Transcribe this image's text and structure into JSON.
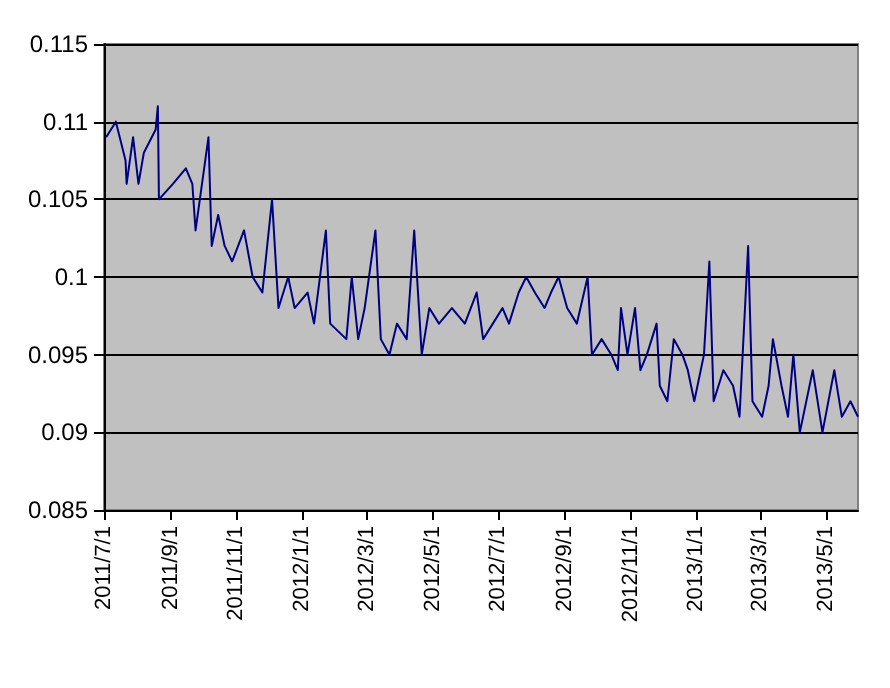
{
  "chart_data": {
    "type": "line",
    "x": [
      "2011-07-03",
      "2011-07-12",
      "2011-07-21",
      "2011-07-22",
      "2011-07-28",
      "2011-08-02",
      "2011-08-07",
      "2011-08-18",
      "2011-08-20",
      "2011-08-21",
      "2011-09-03",
      "2011-09-15",
      "2011-09-21",
      "2011-09-24",
      "2011-10-06",
      "2011-10-09",
      "2011-10-15",
      "2011-10-21",
      "2011-10-28",
      "2011-11-08",
      "2011-11-16",
      "2011-11-25",
      "2011-12-04",
      "2011-12-10",
      "2011-12-19",
      "2011-12-25",
      "2012-01-06",
      "2012-01-12",
      "2012-01-23",
      "2012-01-27",
      "2012-02-11",
      "2012-02-16",
      "2012-02-22",
      "2012-02-28",
      "2012-03-05",
      "2012-03-09",
      "2012-03-14",
      "2012-03-22",
      "2012-03-29",
      "2012-04-07",
      "2012-04-14",
      "2012-04-21",
      "2012-04-28",
      "2012-05-07",
      "2012-05-19",
      "2012-05-31",
      "2012-06-11",
      "2012-06-17",
      "2012-06-26",
      "2012-07-05",
      "2012-07-11",
      "2012-07-20",
      "2012-07-27",
      "2012-08-04",
      "2012-08-13",
      "2012-08-19",
      "2012-08-26",
      "2012-09-03",
      "2012-09-12",
      "2012-09-22",
      "2012-09-26",
      "2012-10-05",
      "2012-10-14",
      "2012-10-20",
      "2012-10-23",
      "2012-10-29",
      "2012-11-05",
      "2012-11-10",
      "2012-11-16",
      "2012-11-25",
      "2012-11-28",
      "2012-12-05",
      "2012-12-11",
      "2012-12-19",
      "2012-12-24",
      "2012-12-30",
      "2013-01-08",
      "2013-01-13",
      "2013-01-17",
      "2013-01-26",
      "2013-02-04",
      "2013-02-10",
      "2013-02-18",
      "2013-02-22",
      "2013-03-03",
      "2013-03-09",
      "2013-03-13",
      "2013-03-21",
      "2013-03-27",
      "2013-04-01",
      "2013-04-07",
      "2013-04-19",
      "2013-04-28",
      "2013-05-09",
      "2013-05-16",
      "2013-05-24",
      "2013-05-31"
    ],
    "series": [
      {
        "color": "#000080",
        "values": [
          0.109,
          0.11,
          0.1075,
          0.106,
          0.109,
          0.106,
          0.108,
          0.1095,
          0.111,
          0.105,
          0.106,
          0.107,
          0.106,
          0.103,
          0.109,
          0.102,
          0.104,
          0.102,
          0.101,
          0.103,
          0.1,
          0.099,
          0.105,
          0.098,
          0.1,
          0.098,
          0.099,
          0.097,
          0.103,
          0.097,
          0.096,
          0.1,
          0.096,
          0.098,
          0.101,
          0.103,
          0.096,
          0.095,
          0.097,
          0.096,
          0.103,
          0.095,
          0.098,
          0.097,
          0.098,
          0.097,
          0.099,
          0.096,
          0.097,
          0.098,
          0.097,
          0.099,
          0.1,
          0.099,
          0.098,
          0.099,
          0.1,
          0.098,
          0.097,
          0.1,
          0.095,
          0.096,
          0.095,
          0.094,
          0.098,
          0.095,
          0.098,
          0.094,
          0.095,
          0.097,
          0.093,
          0.092,
          0.096,
          0.095,
          0.094,
          0.092,
          0.095,
          0.101,
          0.092,
          0.094,
          0.093,
          0.091,
          0.102,
          0.092,
          0.091,
          0.093,
          0.096,
          0.093,
          0.091,
          0.095,
          0.09,
          0.094,
          0.09,
          0.094,
          0.091,
          0.092,
          0.091
        ]
      }
    ],
    "xlim": [
      "2011-07-01",
      "2013-05-31"
    ],
    "xticks": [
      {
        "value": "2011-07-01",
        "label": "2011/7/1"
      },
      {
        "value": "2011-09-01",
        "label": "2011/9/1"
      },
      {
        "value": "2011-11-01",
        "label": "2011/11/1"
      },
      {
        "value": "2012-01-01",
        "label": "2012/1/1"
      },
      {
        "value": "2012-03-01",
        "label": "2012/3/1"
      },
      {
        "value": "2012-05-01",
        "label": "2012/5/1"
      },
      {
        "value": "2012-07-01",
        "label": "2012/7/1"
      },
      {
        "value": "2012-09-01",
        "label": "2012/9/1"
      },
      {
        "value": "2012-11-01",
        "label": "2012/11/1"
      },
      {
        "value": "2013-01-01",
        "label": "2013/1/1"
      },
      {
        "value": "2013-03-01",
        "label": "2013/3/1"
      },
      {
        "value": "2013-05-01",
        "label": "2013/5/1"
      }
    ],
    "ylim": [
      0.085,
      0.115
    ],
    "yticks": [
      0.085,
      0.09,
      0.095,
      0.1,
      0.105,
      0.11,
      0.115
    ],
    "grid": "y",
    "marker": "none",
    "line_style": "solid"
  }
}
